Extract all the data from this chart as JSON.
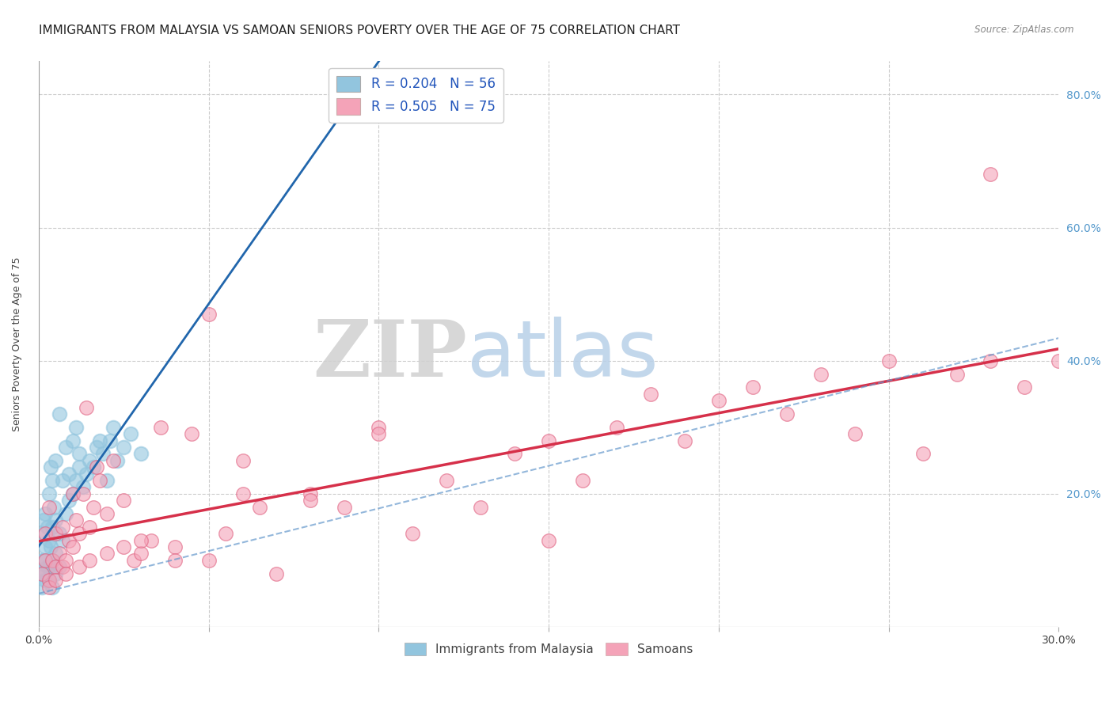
{
  "title": "IMMIGRANTS FROM MALAYSIA VS SAMOAN SENIORS POVERTY OVER THE AGE OF 75 CORRELATION CHART",
  "source": "Source: ZipAtlas.com",
  "ylabel": "Seniors Poverty Over the Age of 75",
  "xlim": [
    0,
    0.3
  ],
  "ylim": [
    0,
    0.85
  ],
  "legend_label1": "R = 0.204   N = 56",
  "legend_label2": "R = 0.505   N = 75",
  "blue_color": "#92c5de",
  "pink_color": "#f4a3b8",
  "pink_edge_color": "#e06080",
  "trend_blue_color": "#2166ac",
  "trend_pink_color": "#d6304a",
  "label1": "Immigrants from Malaysia",
  "label2": "Samoans",
  "blue_scatter_x": [
    0.0005,
    0.001,
    0.001,
    0.0015,
    0.0015,
    0.002,
    0.002,
    0.002,
    0.0025,
    0.0025,
    0.003,
    0.003,
    0.003,
    0.0035,
    0.0035,
    0.004,
    0.004,
    0.004,
    0.0045,
    0.005,
    0.005,
    0.005,
    0.006,
    0.006,
    0.007,
    0.007,
    0.008,
    0.008,
    0.009,
    0.009,
    0.01,
    0.01,
    0.011,
    0.011,
    0.012,
    0.012,
    0.013,
    0.014,
    0.015,
    0.016,
    0.017,
    0.018,
    0.019,
    0.02,
    0.021,
    0.022,
    0.023,
    0.025,
    0.027,
    0.03,
    0.001,
    0.002,
    0.003,
    0.004,
    0.005,
    0.006
  ],
  "blue_scatter_y": [
    0.08,
    0.1,
    0.14,
    0.1,
    0.16,
    0.08,
    0.12,
    0.17,
    0.09,
    0.15,
    0.09,
    0.13,
    0.2,
    0.12,
    0.24,
    0.1,
    0.15,
    0.22,
    0.18,
    0.11,
    0.16,
    0.25,
    0.14,
    0.32,
    0.13,
    0.22,
    0.17,
    0.27,
    0.19,
    0.23,
    0.2,
    0.28,
    0.22,
    0.3,
    0.24,
    0.26,
    0.21,
    0.23,
    0.25,
    0.24,
    0.27,
    0.28,
    0.26,
    0.22,
    0.28,
    0.3,
    0.25,
    0.27,
    0.29,
    0.26,
    0.06,
    0.07,
    0.07,
    0.06,
    0.08,
    0.09
  ],
  "pink_scatter_x": [
    0.001,
    0.002,
    0.002,
    0.003,
    0.003,
    0.004,
    0.005,
    0.005,
    0.006,
    0.007,
    0.007,
    0.008,
    0.009,
    0.01,
    0.01,
    0.011,
    0.012,
    0.013,
    0.014,
    0.015,
    0.016,
    0.017,
    0.018,
    0.02,
    0.022,
    0.025,
    0.028,
    0.03,
    0.033,
    0.036,
    0.04,
    0.045,
    0.05,
    0.055,
    0.06,
    0.065,
    0.07,
    0.08,
    0.09,
    0.1,
    0.11,
    0.12,
    0.13,
    0.14,
    0.15,
    0.16,
    0.17,
    0.18,
    0.19,
    0.2,
    0.21,
    0.22,
    0.23,
    0.24,
    0.25,
    0.26,
    0.27,
    0.28,
    0.29,
    0.3,
    0.003,
    0.005,
    0.008,
    0.012,
    0.015,
    0.02,
    0.025,
    0.03,
    0.04,
    0.05,
    0.06,
    0.08,
    0.1,
    0.15,
    0.28
  ],
  "pink_scatter_y": [
    0.08,
    0.1,
    0.14,
    0.07,
    0.18,
    0.1,
    0.09,
    0.14,
    0.11,
    0.09,
    0.15,
    0.1,
    0.13,
    0.12,
    0.2,
    0.16,
    0.14,
    0.2,
    0.33,
    0.15,
    0.18,
    0.24,
    0.22,
    0.17,
    0.25,
    0.19,
    0.1,
    0.11,
    0.13,
    0.3,
    0.12,
    0.29,
    0.1,
    0.14,
    0.2,
    0.18,
    0.08,
    0.2,
    0.18,
    0.3,
    0.14,
    0.22,
    0.18,
    0.26,
    0.28,
    0.22,
    0.3,
    0.35,
    0.28,
    0.34,
    0.36,
    0.32,
    0.38,
    0.29,
    0.4,
    0.26,
    0.38,
    0.4,
    0.36,
    0.4,
    0.06,
    0.07,
    0.08,
    0.09,
    0.1,
    0.11,
    0.12,
    0.13,
    0.1,
    0.47,
    0.25,
    0.19,
    0.29,
    0.13,
    0.68
  ],
  "bg_color": "#ffffff",
  "grid_color": "#cccccc",
  "title_fontsize": 11,
  "axis_label_fontsize": 9,
  "tick_fontsize": 10,
  "right_tick_color": "#5599cc"
}
